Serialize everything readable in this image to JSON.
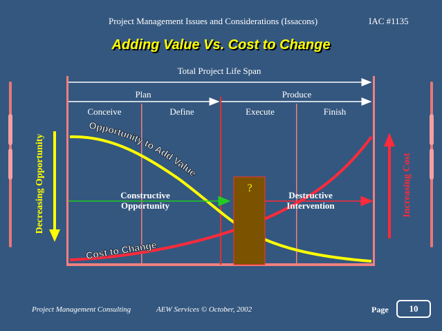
{
  "header": {
    "title": "Project Management Issues and Considerations (Issacons)",
    "code": "IAC #1135"
  },
  "slide": {
    "title": "Adding Value Vs. Cost to Change"
  },
  "diagram": {
    "span_label": "Total Project Life Span",
    "phases": [
      "Plan",
      "Produce"
    ],
    "subphases": [
      "Conceive",
      "Define",
      "Execute",
      "Finish"
    ],
    "left_axis_label": "Decreasing Opportunity",
    "right_axis_label": "Increasing Cost",
    "curve_opportunity_label": "Opportunity to Add Value",
    "curve_cost_label": "Cost to Change",
    "constructive_line1": "Constructive",
    "constructive_line2": "Opportunity",
    "destructive_line1": "Destructive",
    "destructive_line2": "Intervention",
    "box_label": "?"
  },
  "colors": {
    "background": "#34577f",
    "opportunity_curve": "#ffff00",
    "cost_curve": "#ff2a3a",
    "frame": "#f08080",
    "box_fill": "#7a5200"
  },
  "footer": {
    "left": "Project Management Consulting",
    "middle": "AEW Services © October, 2002",
    "page_label": "Page",
    "page_number": "10"
  }
}
